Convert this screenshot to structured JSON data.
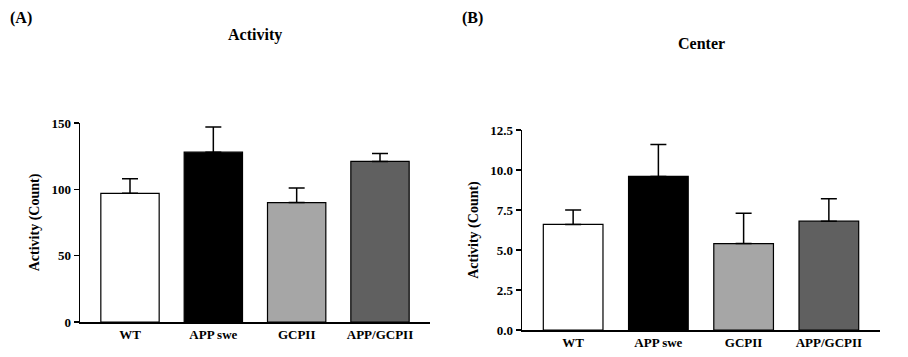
{
  "chart_data": [
    {
      "type": "bar",
      "title": "Activity",
      "annotations": [
        "(A)"
      ],
      "y_label": "Activity (Count)",
      "categories": [
        "WT",
        "APP swe",
        "GCPII",
        "APP/GCPII"
      ],
      "values": [
        97,
        128,
        90,
        121
      ],
      "errors": [
        11,
        19,
        11,
        6
      ],
      "colors": [
        "#ffffff",
        "#000000",
        "#a6a6a6",
        "#606060"
      ],
      "ylim": [
        0,
        150
      ],
      "yticks": [
        0,
        50,
        100,
        150
      ],
      "grid": false
    },
    {
      "type": "bar",
      "title": "Center",
      "annotations": [
        "(B)"
      ],
      "y_label": "Activity (Count)",
      "categories": [
        "WT",
        "APP swe",
        "GCPII",
        "APP/GCPII"
      ],
      "values": [
        6.6,
        9.6,
        5.4,
        6.8
      ],
      "errors": [
        0.9,
        2.0,
        1.9,
        1.4
      ],
      "colors": [
        "#ffffff",
        "#000000",
        "#a6a6a6",
        "#606060"
      ],
      "ylim": [
        0,
        12.5
      ],
      "yticks": [
        {
          "value": 0,
          "label": "0.0"
        },
        2.5,
        {
          "value": 5,
          "label": "5.0"
        },
        7.5,
        {
          "value": 10,
          "label": "10.0"
        },
        12.5
      ],
      "grid": false
    }
  ]
}
